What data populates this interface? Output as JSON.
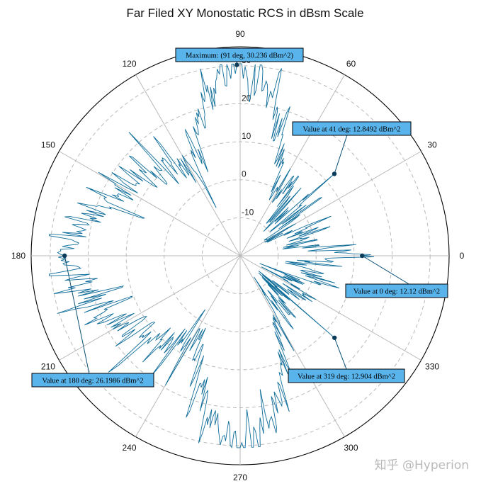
{
  "chart_data": {
    "type": "polar-line",
    "title": "Far Filed XY Monostatic RCS in dBsm Scale",
    "angle_unit": "deg",
    "angle_ticks": [
      0,
      30,
      60,
      90,
      120,
      150,
      180,
      210,
      240,
      270,
      300,
      330
    ],
    "angle_tick_labels": [
      "0",
      "30",
      "60",
      "90",
      "120",
      "150",
      "180",
      "210",
      "240",
      "270",
      "300",
      "330"
    ],
    "radial_ticks": [
      -10,
      0,
      10,
      20,
      30
    ],
    "radial_tick_labels": [
      "-10",
      "0",
      "10",
      "20",
      "30"
    ],
    "rlim": [
      -20,
      35
    ],
    "grid": true,
    "line_color": "#0f6d9a",
    "grid_color": "#b9b9b9",
    "annotation_fill": "#5ab4ec",
    "keypoints": [
      {
        "angle": 0,
        "value": 12.12
      },
      {
        "angle": 41,
        "value": 12.8492
      },
      {
        "angle": 91,
        "value": 30.236
      },
      {
        "angle": 180,
        "value": 26.1986
      },
      {
        "angle": 319,
        "value": 12.904
      }
    ],
    "annotations": [
      {
        "label": "Maximum: (91 deg, 30.236 dBm^2)",
        "angle": 91,
        "value": 30.236,
        "placement": "top"
      },
      {
        "label": "Value at 41 deg: 12.8492 dBm^2",
        "angle": 41,
        "value": 12.8492,
        "placement": "upper-right"
      },
      {
        "label": "Value at 0 deg: 12.12 dBm^2",
        "angle": 0,
        "value": 12.12,
        "placement": "right"
      },
      {
        "label": "Value at 319 deg: 12.904 dBm^2",
        "angle": 319,
        "value": 12.904,
        "placement": "lower-right"
      },
      {
        "label": "Value at 180 deg: 26.1986 dBm^2",
        "angle": 180,
        "value": 26.1986,
        "placement": "lower-left"
      }
    ]
  },
  "watermark": "知乎 @Hyperion"
}
